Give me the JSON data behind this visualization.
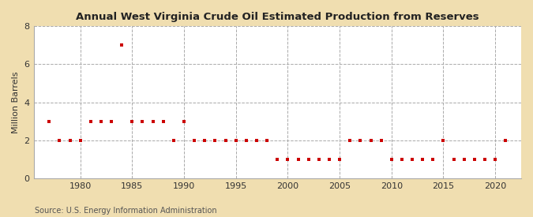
{
  "title": "Annual West Virginia Crude Oil Estimated Production from Reserves",
  "ylabel": "Million Barrels",
  "source": "Source: U.S. Energy Information Administration",
  "figure_bg": "#f0deb0",
  "plot_bg": "#ffffff",
  "marker_color": "#cc0000",
  "grid_color": "#aaaaaa",
  "years": [
    1977,
    1978,
    1979,
    1980,
    1981,
    1982,
    1983,
    1984,
    1985,
    1986,
    1987,
    1988,
    1989,
    1990,
    1991,
    1992,
    1993,
    1994,
    1995,
    1996,
    1997,
    1998,
    1999,
    2000,
    2001,
    2002,
    2003,
    2004,
    2005,
    2006,
    2007,
    2008,
    2009,
    2010,
    2011,
    2012,
    2013,
    2014,
    2015,
    2016,
    2017,
    2018,
    2019,
    2020,
    2021
  ],
  "values": [
    3,
    2,
    2,
    2,
    3,
    3,
    3,
    7,
    3,
    3,
    3,
    3,
    2,
    3,
    2,
    2,
    2,
    2,
    2,
    2,
    2,
    2,
    1,
    1,
    1,
    1,
    1,
    1,
    1,
    2,
    2,
    2,
    2,
    1,
    1,
    1,
    1,
    1,
    2,
    1,
    1,
    1,
    1,
    1,
    2
  ],
  "ylim": [
    0,
    8
  ],
  "yticks": [
    0,
    2,
    4,
    6,
    8
  ],
  "xticks": [
    1980,
    1985,
    1990,
    1995,
    2000,
    2005,
    2010,
    2015,
    2020
  ],
  "xlim": [
    1975.5,
    2022.5
  ]
}
